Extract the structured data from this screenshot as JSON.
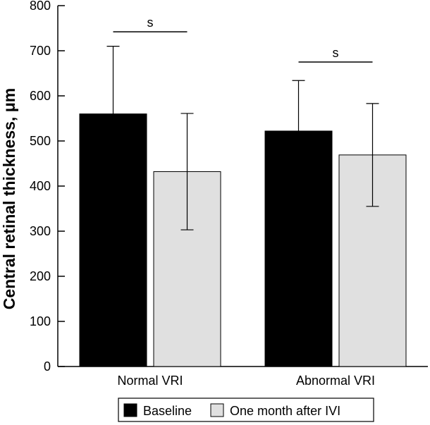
{
  "chart_data": {
    "type": "bar",
    "title": "",
    "xlabel": "",
    "ylabel": "Central retinal thickness, μm",
    "ylim": [
      0,
      800
    ],
    "yticks": [
      0,
      100,
      200,
      300,
      400,
      500,
      600,
      700,
      800
    ],
    "categories": [
      "Normal VRI",
      "Abnormal VRI"
    ],
    "series": [
      {
        "name": "Baseline",
        "color": "#000000",
        "values": [
          560,
          522
        ],
        "errors": [
          150,
          112
        ]
      },
      {
        "name": "One month after IVI",
        "color": "#e0e0e0",
        "values": [
          432,
          469
        ],
        "errors": [
          129,
          114
        ]
      }
    ],
    "significance": [
      {
        "category": "Normal VRI",
        "label": "s"
      },
      {
        "category": "Abnormal VRI",
        "label": "s"
      }
    ],
    "legend_position": "bottom-center",
    "grid": false
  }
}
